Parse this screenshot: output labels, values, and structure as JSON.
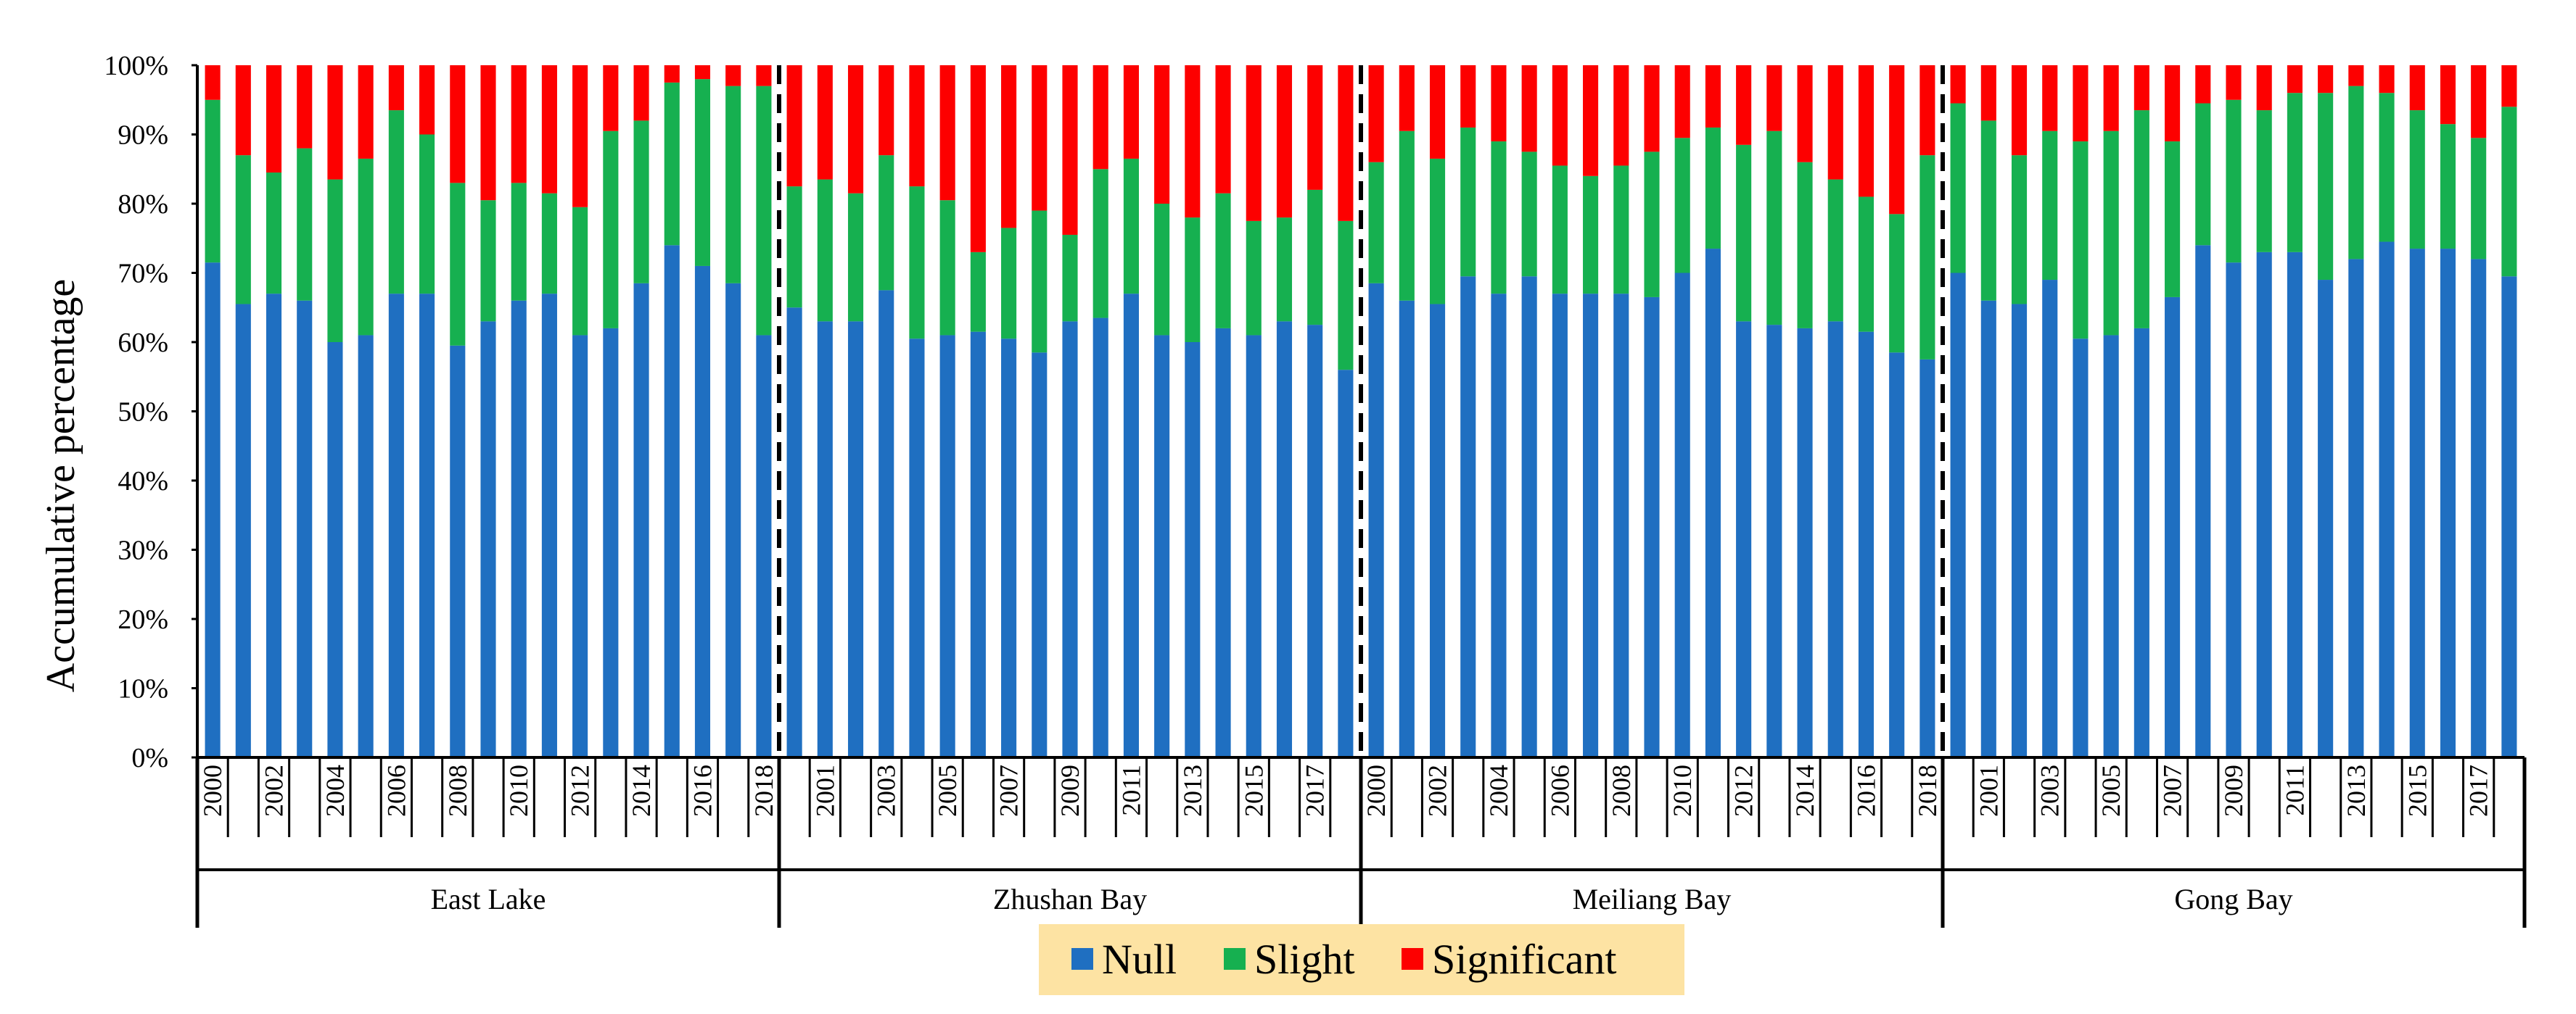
{
  "chart_data": {
    "type": "bar",
    "stacked": true,
    "normalized": true,
    "ylabel": "Accumulative percentage",
    "ylim": [
      0,
      100
    ],
    "y_tick_labels": [
      "0%",
      "10%",
      "20%",
      "30%",
      "40%",
      "50%",
      "60%",
      "70%",
      "80%",
      "90%",
      "100%"
    ],
    "legend": {
      "placement": "bottom-center",
      "background": "#fde3a3"
    },
    "series": [
      {
        "name": "Null",
        "color": "#1f6fc1"
      },
      {
        "name": "Slight",
        "color": "#16b050"
      },
      {
        "name": "Significant",
        "color": "#fd0000"
      }
    ],
    "regions": [
      {
        "name": "East Lake",
        "years": [
          "2000",
          "2001",
          "2002",
          "2003",
          "2004",
          "2005",
          "2006",
          "2007",
          "2008",
          "2009",
          "2010",
          "2011",
          "2012",
          "2013",
          "2014",
          "2015",
          "2016",
          "2017",
          "2018"
        ],
        "labeled_years": [
          "2000",
          "2002",
          "2004",
          "2006",
          "2008",
          "2010",
          "2012",
          "2014",
          "2016",
          "2018"
        ],
        "null": [
          71.5,
          65.5,
          67,
          66,
          60,
          61,
          67,
          67,
          59.5,
          63,
          66,
          67,
          61,
          62,
          68.5,
          74,
          71,
          68.5,
          61
        ],
        "slight": [
          23.5,
          21.5,
          17.5,
          22,
          23.5,
          25.5,
          26.5,
          23,
          23.5,
          17.5,
          17,
          14.5,
          18.5,
          28.5,
          23.5,
          23.5,
          27,
          28.5,
          36
        ]
      },
      {
        "name": "Zhushan Bay",
        "years": [
          "2000",
          "2001",
          "2002",
          "2003",
          "2004",
          "2005",
          "2006",
          "2007",
          "2008",
          "2009",
          "2010",
          "2011",
          "2012",
          "2013",
          "2014",
          "2015",
          "2016",
          "2017",
          "2018"
        ],
        "labeled_years": [
          "2001",
          "2003",
          "2005",
          "2007",
          "2009",
          "2011",
          "2013",
          "2015",
          "2017"
        ],
        "null": [
          65,
          63,
          63,
          67.5,
          60.5,
          61,
          61.5,
          60.5,
          58.5,
          63,
          63.5,
          67,
          61,
          60,
          62,
          61,
          63,
          62.5,
          56
        ],
        "slight": [
          17.5,
          20.5,
          18.5,
          19.5,
          22,
          19.5,
          11.5,
          16,
          20.5,
          12.5,
          21.5,
          19.5,
          19,
          18,
          19.5,
          16.5,
          15,
          19.5,
          21.5
        ]
      },
      {
        "name": "Meiliang Bay",
        "years": [
          "2000",
          "2001",
          "2002",
          "2003",
          "2004",
          "2005",
          "2006",
          "2007",
          "2008",
          "2009",
          "2010",
          "2011",
          "2012",
          "2013",
          "2014",
          "2015",
          "2016",
          "2017",
          "2018"
        ],
        "labeled_years": [
          "2000",
          "2002",
          "2004",
          "2006",
          "2008",
          "2010",
          "2012",
          "2014",
          "2016",
          "2018"
        ],
        "null": [
          68.5,
          66,
          65.5,
          69.5,
          67,
          69.5,
          67,
          67,
          67,
          66.5,
          70,
          73.5,
          63,
          62.5,
          62,
          63,
          61.5,
          58.5,
          57.5
        ],
        "slight": [
          17.5,
          24.5,
          21,
          21.5,
          22,
          18,
          18.5,
          17,
          18.5,
          21,
          19.5,
          17.5,
          25.5,
          28,
          24,
          20.5,
          19.5,
          20,
          29.5
        ]
      },
      {
        "name": "Gong Bay",
        "years": [
          "2000",
          "2001",
          "2002",
          "2003",
          "2004",
          "2005",
          "2006",
          "2007",
          "2008",
          "2009",
          "2010",
          "2011",
          "2012",
          "2013",
          "2014",
          "2015",
          "2016",
          "2017",
          "2018"
        ],
        "labeled_years": [
          "2001",
          "2003",
          "2005",
          "2007",
          "2009",
          "2011",
          "2013",
          "2015",
          "2017"
        ],
        "null": [
          70,
          66,
          65.5,
          69,
          60.5,
          61,
          62,
          66.5,
          74,
          71.5,
          73,
          73,
          69,
          72,
          74.5,
          73.5,
          73.5,
          72,
          69.5
        ],
        "slight": [
          24.5,
          26,
          21.5,
          21.5,
          28.5,
          29.5,
          31.5,
          22.5,
          20.5,
          23.5,
          20.5,
          23,
          27,
          25,
          21.5,
          20,
          18,
          17.5,
          24.5
        ]
      }
    ]
  }
}
